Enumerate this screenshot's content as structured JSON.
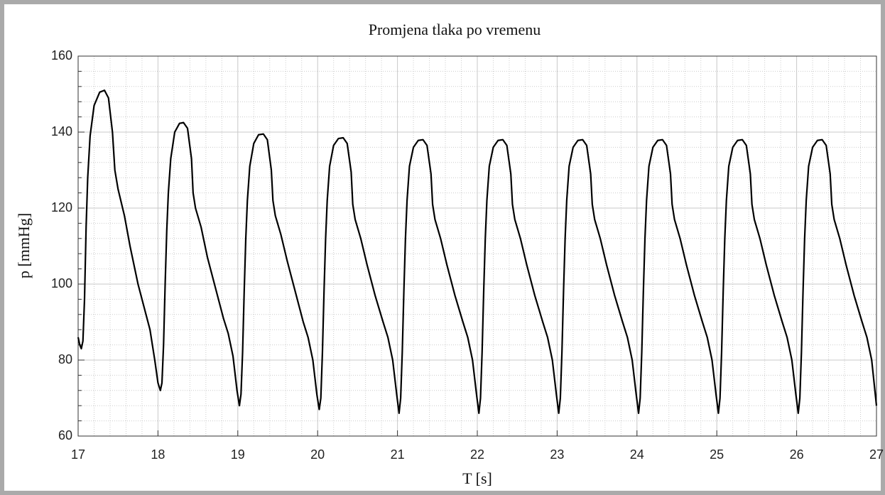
{
  "chart_data": {
    "type": "line",
    "title": "Promjena tlaka po vremenu",
    "xlabel": "T [s]",
    "ylabel": "p [mmHg]",
    "xlim": [
      17,
      27
    ],
    "xticks": [
      17,
      18,
      19,
      20,
      21,
      22,
      23,
      24,
      25,
      26,
      27
    ],
    "xminorticks": [
      17.2,
      17.4,
      17.6,
      17.8,
      18.2,
      18.4,
      18.6,
      18.8,
      19.2,
      19.4,
      19.6,
      19.8,
      20.2,
      20.4,
      20.6,
      20.8,
      21.2,
      21.4,
      21.6,
      21.8,
      22.2,
      22.4,
      22.6,
      22.8,
      23.2,
      23.4,
      23.6,
      23.8,
      24.2,
      24.4,
      24.6,
      24.8,
      25.2,
      25.4,
      25.6,
      25.8,
      26.2,
      26.4,
      26.6,
      26.8
    ],
    "ylim": [
      60,
      160
    ],
    "yticks": [
      60,
      80,
      100,
      120,
      140,
      160
    ],
    "yminorticks": [
      64,
      68,
      72,
      76,
      84,
      88,
      92,
      96,
      104,
      108,
      112,
      116,
      124,
      128,
      132,
      136,
      144,
      148,
      152,
      156
    ],
    "grid": true,
    "series": [
      {
        "color": "#000000",
        "x": [
          17.0,
          17.02,
          17.04,
          17.06,
          17.08,
          17.1,
          17.12,
          17.15,
          17.2,
          17.27,
          17.33,
          17.38,
          17.43,
          17.46,
          17.5,
          17.58,
          17.65,
          17.75,
          17.85,
          17.9,
          17.96,
          18.0,
          18.03,
          18.05,
          18.07,
          18.09,
          18.11,
          18.13,
          18.16,
          18.21,
          18.27,
          18.32,
          18.37,
          18.42,
          18.44,
          18.47,
          18.54,
          18.62,
          18.72,
          18.82,
          18.88,
          18.94,
          18.99,
          19.02,
          19.04,
          19.06,
          19.08,
          19.1,
          19.12,
          19.15,
          19.2,
          19.26,
          19.32,
          19.37,
          19.42,
          19.44,
          19.47,
          19.54,
          19.62,
          19.72,
          19.82,
          19.88,
          19.94,
          19.99,
          20.02,
          20.04,
          20.06,
          20.08,
          20.1,
          20.12,
          20.15,
          20.2,
          20.26,
          20.32,
          20.37,
          20.42,
          20.44,
          20.47,
          20.54,
          20.62,
          20.72,
          20.82,
          20.88,
          20.94,
          20.99,
          21.02,
          21.04,
          21.06,
          21.08,
          21.1,
          21.12,
          21.15,
          21.2,
          21.26,
          21.32,
          21.37,
          21.42,
          21.44,
          21.47,
          21.54,
          21.62,
          21.72,
          21.82,
          21.88,
          21.94,
          21.99,
          22.02,
          22.04,
          22.06,
          22.08,
          22.1,
          22.12,
          22.15,
          22.2,
          22.26,
          22.32,
          22.37,
          22.42,
          22.44,
          22.47,
          22.54,
          22.62,
          22.72,
          22.82,
          22.88,
          22.94,
          22.99,
          23.02,
          23.04,
          23.06,
          23.08,
          23.1,
          23.12,
          23.15,
          23.2,
          23.26,
          23.32,
          23.37,
          23.42,
          23.44,
          23.47,
          23.54,
          23.62,
          23.72,
          23.82,
          23.88,
          23.94,
          23.99,
          24.02,
          24.04,
          24.06,
          24.08,
          24.1,
          24.12,
          24.15,
          24.2,
          24.26,
          24.32,
          24.37,
          24.42,
          24.44,
          24.47,
          24.54,
          24.62,
          24.72,
          24.82,
          24.88,
          24.94,
          24.99,
          25.02,
          25.04,
          25.06,
          25.08,
          25.1,
          25.12,
          25.15,
          25.2,
          25.26,
          25.32,
          25.37,
          25.42,
          25.44,
          25.47,
          25.54,
          25.62,
          25.72,
          25.82,
          25.88,
          25.94,
          25.99,
          26.02,
          26.04,
          26.06,
          26.08,
          26.1,
          26.12,
          26.15,
          26.2,
          26.26,
          26.32,
          26.37,
          26.42,
          26.44,
          26.47,
          26.54,
          26.62,
          26.72,
          26.82,
          26.88,
          26.94,
          26.99,
          27.0
        ],
        "values": [
          86,
          84,
          83,
          85,
          96,
          115,
          128,
          139,
          147,
          150.5,
          151,
          149,
          140,
          130,
          125,
          118,
          110,
          100,
          92,
          88,
          80,
          74,
          72,
          74,
          84,
          100,
          114,
          124,
          133,
          140,
          142.3,
          142.5,
          141,
          133,
          124,
          120,
          115,
          107,
          99,
          91,
          87,
          81,
          72,
          68,
          71,
          82,
          98,
          112,
          122,
          131,
          137,
          139.3,
          139.5,
          138,
          130,
          122,
          118,
          113,
          106,
          98,
          90,
          86,
          80,
          71,
          67,
          70,
          82,
          98,
          112,
          122,
          131,
          136.5,
          138.3,
          138.5,
          137,
          129.5,
          121,
          117,
          112,
          105,
          97,
          90,
          86,
          80,
          71,
          66,
          70,
          82,
          98,
          112,
          122,
          131,
          136,
          137.8,
          138,
          136.5,
          129,
          121,
          117,
          112,
          105,
          97,
          90,
          86,
          80,
          71,
          66,
          70,
          82,
          98,
          112,
          122,
          131,
          136,
          137.8,
          138,
          136.5,
          129,
          121,
          117,
          112,
          105,
          97,
          90,
          86,
          80,
          71,
          66,
          70,
          82,
          98,
          112,
          122,
          131,
          136,
          137.8,
          138,
          136.5,
          129,
          121,
          117,
          112,
          105,
          97,
          90,
          86,
          80,
          71,
          66,
          70,
          82,
          98,
          112,
          122,
          131,
          136,
          137.8,
          138,
          136.5,
          129,
          121,
          117,
          112,
          105,
          97,
          90,
          86,
          80,
          71,
          66,
          70,
          82,
          98,
          112,
          122,
          131,
          136,
          137.8,
          138,
          136.5,
          129,
          121,
          117,
          112,
          105,
          97,
          90,
          86,
          80,
          71,
          66,
          70,
          82,
          98,
          112,
          122,
          131,
          136,
          137.8,
          138,
          136.5,
          129,
          121,
          117,
          112,
          105,
          97,
          90,
          86,
          80,
          70,
          68
        ]
      }
    ]
  }
}
